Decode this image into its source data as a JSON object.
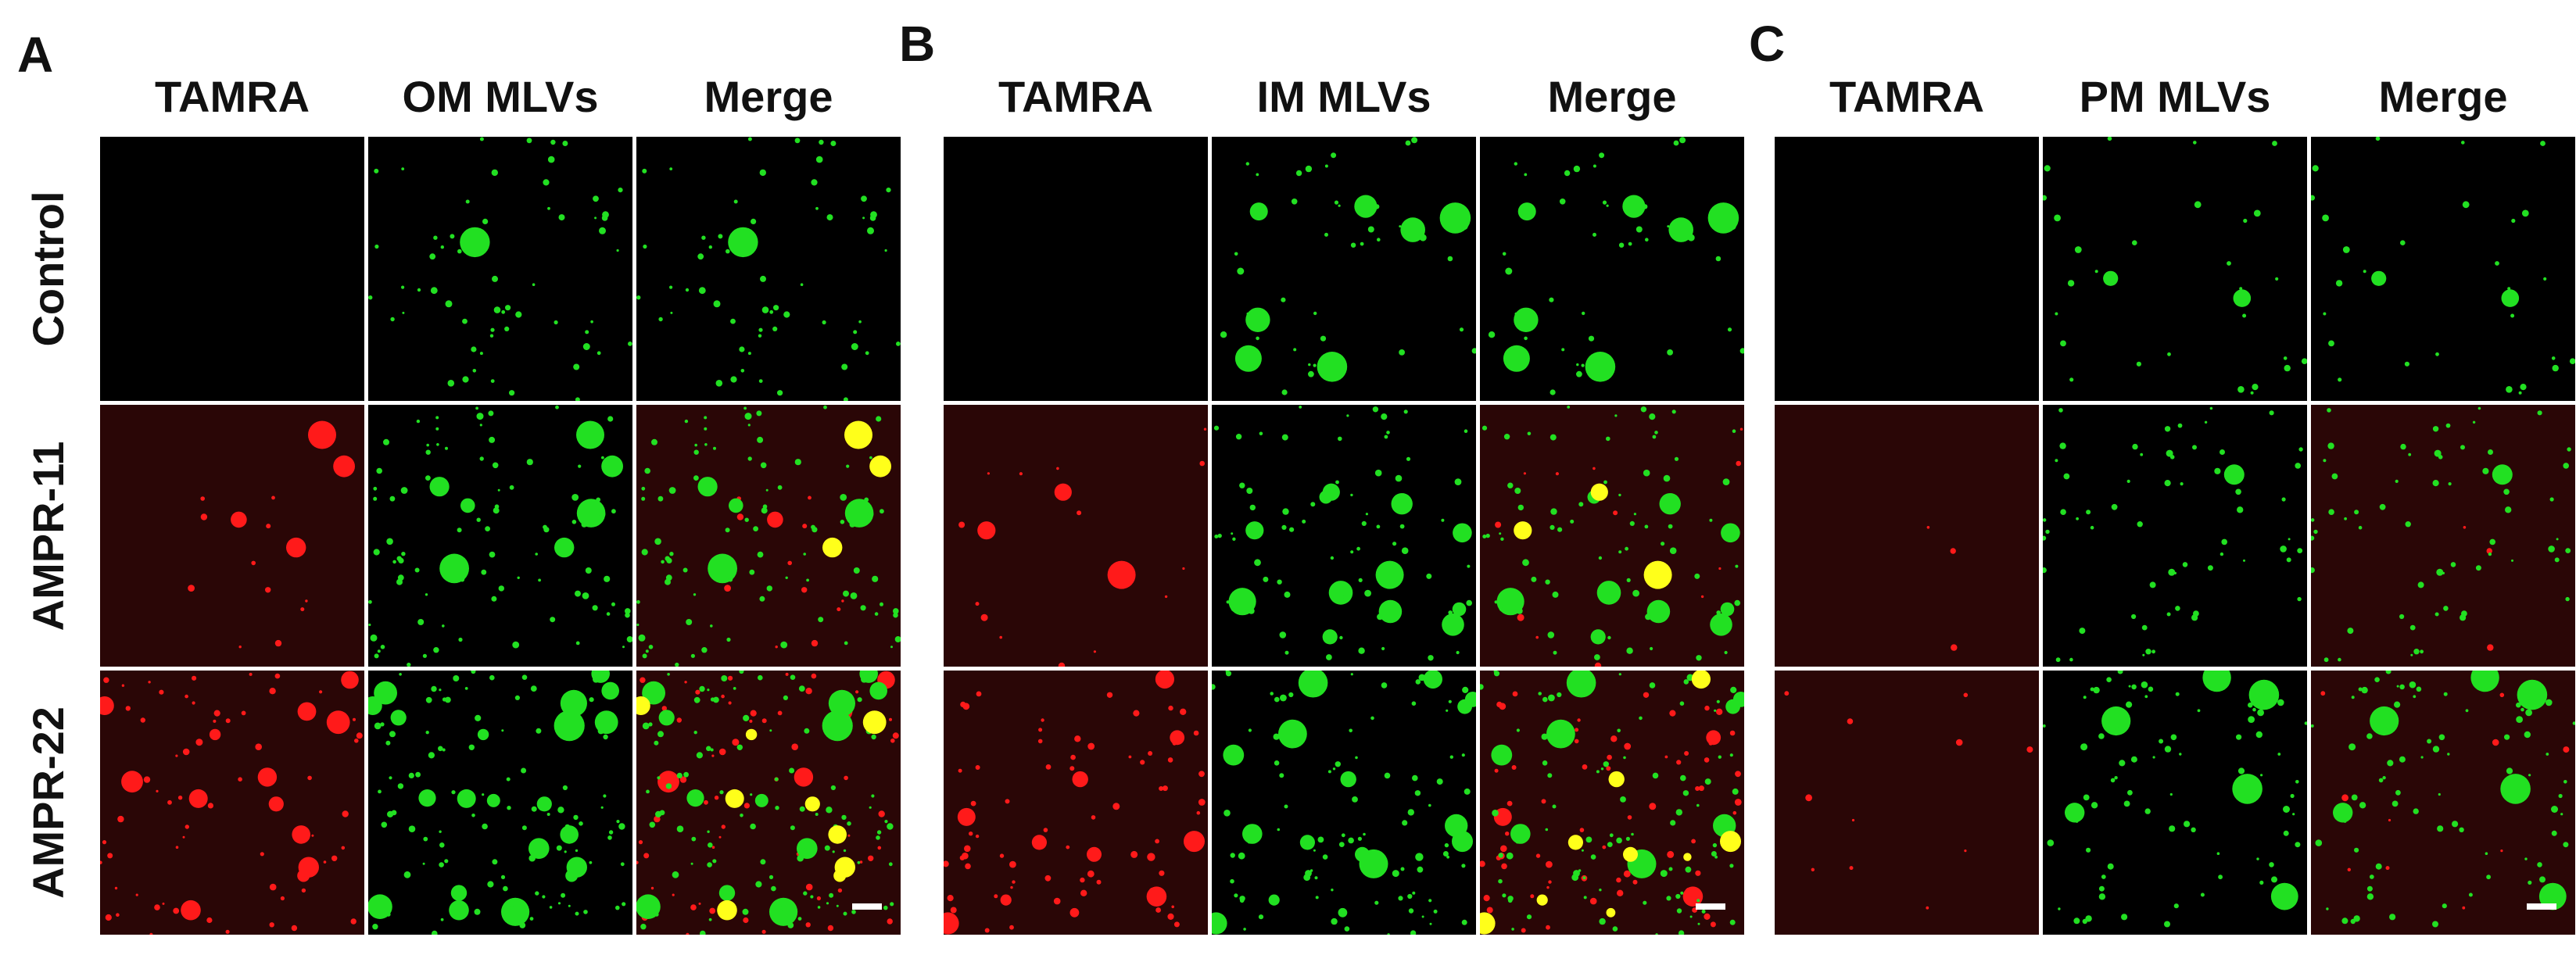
{
  "panels": [
    {
      "letter": "A",
      "columns": [
        "TAMRA",
        "OM MLVs",
        "Merge"
      ],
      "has_scale_bar": true
    },
    {
      "letter": "B",
      "columns": [
        "TAMRA",
        "IM MLVs",
        "Merge"
      ],
      "has_scale_bar": true
    },
    {
      "letter": "C",
      "columns": [
        "TAMRA",
        "PM MLVs",
        "Merge"
      ],
      "has_scale_bar": true
    }
  ],
  "rows": [
    "Control",
    "AMPR-11",
    "AMPR-22"
  ],
  "colors": {
    "tamra": "#ff1a1a",
    "mlv": "#22e022",
    "overlap": "#ffff1a",
    "background": "#000000",
    "red_background": "#2a0606"
  }
}
